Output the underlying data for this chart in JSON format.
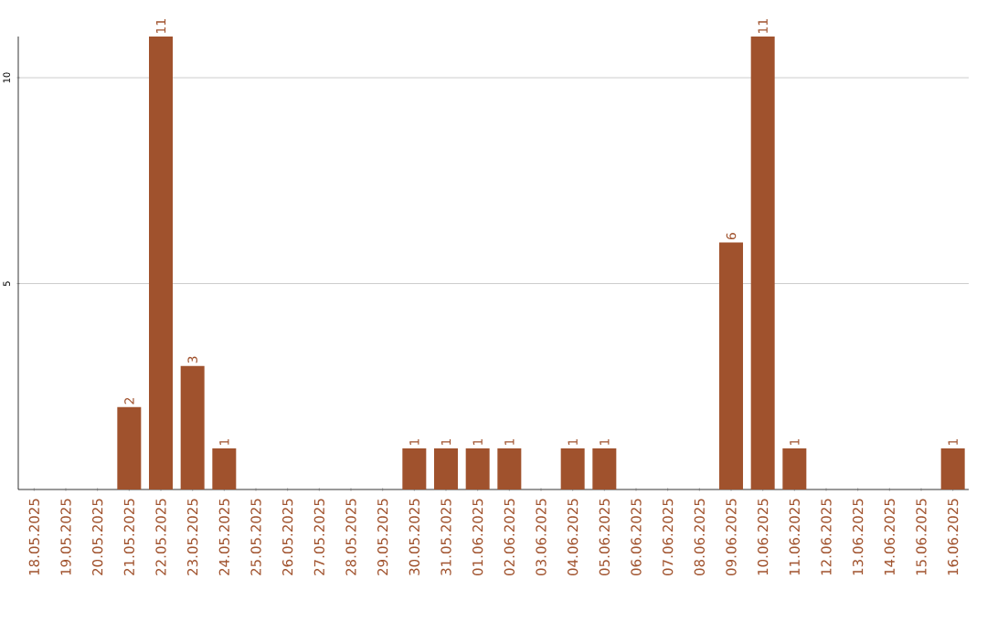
{
  "chart_data": {
    "type": "bar",
    "categories": [
      "18.05.2025",
      "19.05.2025",
      "20.05.2025",
      "21.05.2025",
      "22.05.2025",
      "23.05.2025",
      "24.05.2025",
      "25.05.2025",
      "26.05.2025",
      "27.05.2025",
      "28.05.2025",
      "29.05.2025",
      "30.05.2025",
      "31.05.2025",
      "01.06.2025",
      "02.06.2025",
      "03.06.2025",
      "04.06.2025",
      "05.06.2025",
      "06.06.2025",
      "07.06.2025",
      "08.06.2025",
      "09.06.2025",
      "10.06.2025",
      "11.06.2025",
      "12.06.2025",
      "13.06.2025",
      "14.06.2025",
      "15.06.2025",
      "16.06.2025"
    ],
    "values": [
      0,
      0,
      0,
      2,
      11,
      3,
      1,
      0,
      0,
      0,
      0,
      0,
      1,
      1,
      1,
      1,
      0,
      1,
      1,
      0,
      0,
      0,
      6,
      11,
      1,
      0,
      0,
      0,
      0,
      1
    ],
    "value_labels": [
      null,
      null,
      null,
      "2",
      "11",
      "3",
      "1",
      null,
      null,
      null,
      null,
      null,
      "1",
      "1",
      "1",
      "1",
      null,
      "1",
      "1",
      null,
      null,
      null,
      "6",
      "11",
      "1",
      null,
      null,
      null,
      null,
      "1"
    ],
    "color": "#a0522d",
    "ylim": [
      0,
      11
    ],
    "yticks": [
      5,
      10
    ],
    "grid": "y"
  }
}
